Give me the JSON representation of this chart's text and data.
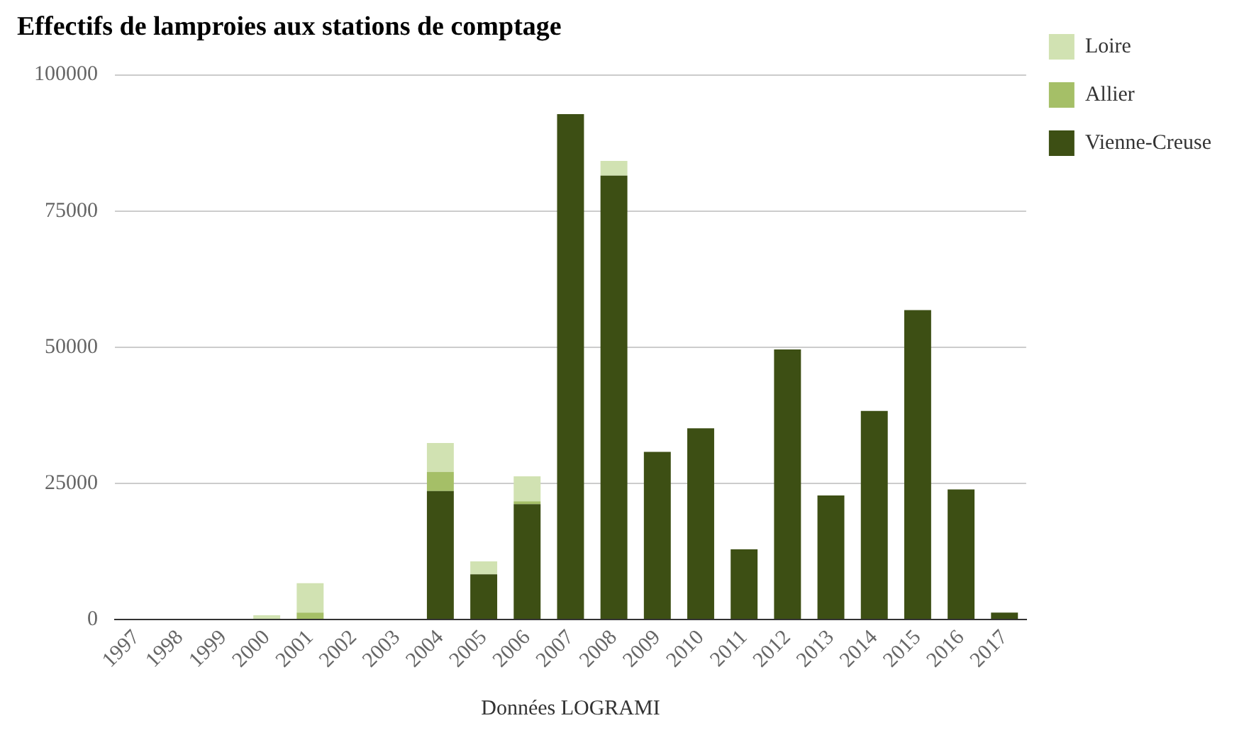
{
  "chart_data": {
    "type": "bar",
    "title": "Effectifs de lamproies aux stations de comptage",
    "xlabel": "Données LOGRAMI",
    "categories": [
      "1997",
      "1998",
      "1999",
      "2000",
      "2001",
      "2002",
      "2003",
      "2004",
      "2005",
      "2006",
      "2007",
      "2008",
      "2009",
      "2010",
      "2011",
      "2012",
      "2013",
      "2014",
      "2015",
      "2016",
      "2017"
    ],
    "stacked": true,
    "series": [
      {
        "name": "Vienne-Creuse",
        "color": "#3d4f14",
        "values": [
          0,
          0,
          0,
          0,
          0,
          0,
          0,
          23600,
          8300,
          21200,
          92800,
          81500,
          30800,
          35100,
          12900,
          49600,
          22800,
          38300,
          56800,
          23900,
          1300
        ]
      },
      {
        "name": "Allier",
        "color": "#a5bf67",
        "values": [
          0,
          0,
          0,
          0,
          1300,
          0,
          0,
          3500,
          0,
          500,
          0,
          0,
          0,
          0,
          0,
          0,
          0,
          0,
          0,
          0,
          0
        ]
      },
      {
        "name": "Loire",
        "color": "#d1e2b2",
        "values": [
          0,
          0,
          0,
          800,
          5400,
          0,
          0,
          5300,
          2400,
          4600,
          0,
          2700,
          0,
          0,
          0,
          0,
          null,
          0,
          0,
          0,
          0
        ]
      }
    ],
    "ylim": [
      0,
      100000
    ],
    "yticks": [
      0,
      25000,
      50000,
      75000,
      100000
    ],
    "grid": "y",
    "legend": "top right"
  }
}
